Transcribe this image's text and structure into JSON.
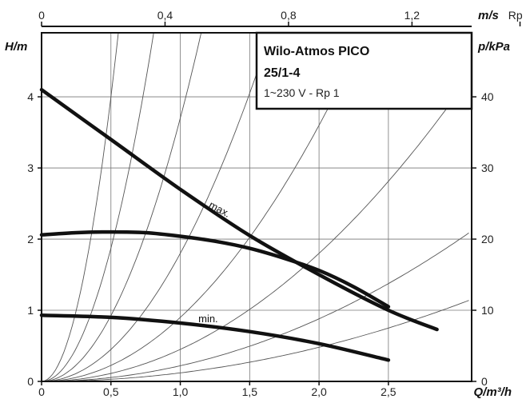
{
  "chart_data": {
    "type": "line",
    "title": "Wilo-Atmos PICO",
    "title_line2": "25/1-4",
    "subtitle": "1~230 V - Rp 1",
    "xlabel": "Q/m³/h",
    "ylabel": "H/m",
    "y2label": "p/kPa",
    "top_axis_label": "m/s",
    "xlim": [
      0,
      3.1
    ],
    "ylim": [
      0,
      4.9
    ],
    "grid": true,
    "x_ticks": [
      {
        "value": 0,
        "label": "0"
      },
      {
        "value": 0.5,
        "label": "0,5"
      },
      {
        "value": 1.0,
        "label": "1,0"
      },
      {
        "value": 1.5,
        "label": "1,5"
      },
      {
        "value": 2.0,
        "label": "2,0"
      },
      {
        "value": 2.5,
        "label": "2,5"
      }
    ],
    "y_ticks": [
      {
        "value": 0,
        "label": "0"
      },
      {
        "value": 1,
        "label": "1"
      },
      {
        "value": 2,
        "label": "2"
      },
      {
        "value": 3,
        "label": "3"
      },
      {
        "value": 4,
        "label": "4"
      }
    ],
    "y2_ticks": [
      {
        "value": 0,
        "label": "0"
      },
      {
        "value": 10,
        "label": "10"
      },
      {
        "value": 20,
        "label": "20"
      },
      {
        "value": 30,
        "label": "30"
      },
      {
        "value": 40,
        "label": "40"
      }
    ],
    "top_ticks": [
      {
        "value": 0,
        "label": "0"
      },
      {
        "value": 0.4,
        "label": "0,4"
      },
      {
        "value": 0.8,
        "label": "0,8"
      },
      {
        "value": 1.2,
        "label": "1,2"
      }
    ],
    "top_axis_extra_label": "Rp 1",
    "top_axis_extra_value": 1.55,
    "series": [
      {
        "name": "max.",
        "x": [
          0,
          0.5,
          1.0,
          1.5,
          2.0,
          2.5,
          2.85
        ],
        "y": [
          4.1,
          3.4,
          2.7,
          2.05,
          1.5,
          1.0,
          0.73
        ]
      },
      {
        "name": "",
        "x": [
          0,
          0.25,
          0.5,
          0.75,
          1.0,
          1.25,
          1.5,
          1.75,
          2.0,
          2.25,
          2.5
        ],
        "y": [
          2.06,
          2.09,
          2.1,
          2.09,
          2.04,
          1.97,
          1.87,
          1.73,
          1.56,
          1.33,
          1.05
        ]
      },
      {
        "name": "min.",
        "x": [
          0,
          0.5,
          1.0,
          1.5,
          2.0,
          2.5
        ],
        "y": [
          0.93,
          0.9,
          0.82,
          0.7,
          0.53,
          0.3
        ]
      }
    ],
    "system_curves_k": [
      0.12,
      0.22,
      0.45,
      0.9,
      1.8,
      3.7,
      7.5,
      16
    ],
    "annotations": [
      "max.",
      "min."
    ]
  }
}
